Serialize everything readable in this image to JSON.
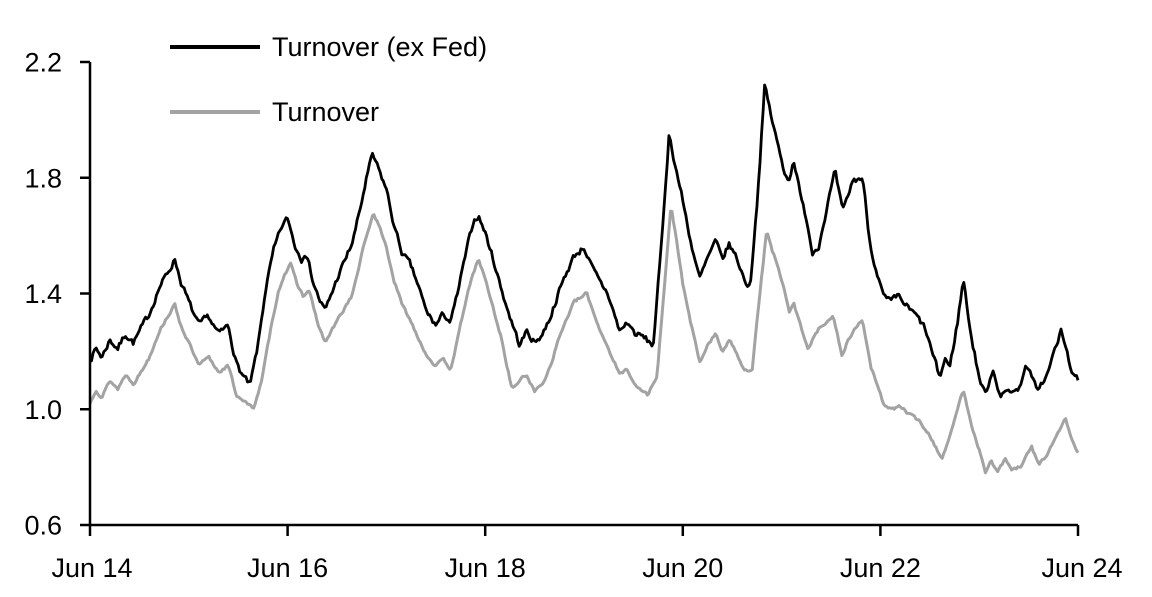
{
  "page": {
    "background": "#ffffff"
  },
  "legend": {
    "items": [
      {
        "label": "Turnover (ex Fed)",
        "color": "#000000"
      },
      {
        "label": "Turnover",
        "color": "#a3a3a3"
      }
    ]
  },
  "chart_data": {
    "type": "line",
    "title": "",
    "grid": false,
    "legend_position": "top-left-inside",
    "x_axis": {
      "label": "",
      "unit": "years since Jun 2014",
      "range": [
        0,
        10
      ],
      "tick_positions": [
        0,
        2,
        4,
        6,
        8,
        10
      ],
      "tick_labels": [
        "Jun 14",
        "Jun 16",
        "Jun 18",
        "Jun 20",
        "Jun 22",
        "Jun 24"
      ]
    },
    "y_axis": {
      "label": "",
      "range": [
        0.6,
        2.2
      ],
      "tick_values": [
        2.2,
        1.8,
        1.4,
        1.0,
        0.6
      ],
      "tick_labels": [
        "2.2",
        "1.8",
        "1.4",
        "1.0",
        "0.6"
      ]
    },
    "axis_color": "#000000",
    "series": [
      {
        "name": "Turnover (ex Fed)",
        "color": "#000000",
        "stroke_width": 2.8,
        "points": [
          [
            0,
            1.17
          ],
          [
            0.06,
            1.21
          ],
          [
            0.12,
            1.18
          ],
          [
            0.2,
            1.24
          ],
          [
            0.28,
            1.21
          ],
          [
            0.36,
            1.26
          ],
          [
            0.44,
            1.23
          ],
          [
            0.52,
            1.28
          ],
          [
            0.6,
            1.33
          ],
          [
            0.7,
            1.42
          ],
          [
            0.8,
            1.48
          ],
          [
            0.86,
            1.52
          ],
          [
            0.92,
            1.44
          ],
          [
            1,
            1.37
          ],
          [
            1.1,
            1.29
          ],
          [
            1.2,
            1.32
          ],
          [
            1.3,
            1.26
          ],
          [
            1.4,
            1.29
          ],
          [
            1.48,
            1.16
          ],
          [
            1.54,
            1.12
          ],
          [
            1.62,
            1.08
          ],
          [
            1.7,
            1.22
          ],
          [
            1.78,
            1.42
          ],
          [
            1.86,
            1.55
          ],
          [
            1.94,
            1.63
          ],
          [
            2,
            1.66
          ],
          [
            2.08,
            1.56
          ],
          [
            2.14,
            1.52
          ],
          [
            2.18,
            1.55
          ],
          [
            2.26,
            1.44
          ],
          [
            2.32,
            1.38
          ],
          [
            2.38,
            1.34
          ],
          [
            2.5,
            1.45
          ],
          [
            2.6,
            1.53
          ],
          [
            2.66,
            1.58
          ],
          [
            2.74,
            1.7
          ],
          [
            2.8,
            1.8
          ],
          [
            2.86,
            1.88
          ],
          [
            2.93,
            1.82
          ],
          [
            3,
            1.76
          ],
          [
            3.08,
            1.63
          ],
          [
            3.16,
            1.54
          ],
          [
            3.24,
            1.5
          ],
          [
            3.32,
            1.43
          ],
          [
            3.4,
            1.34
          ],
          [
            3.5,
            1.29
          ],
          [
            3.58,
            1.33
          ],
          [
            3.65,
            1.3
          ],
          [
            3.72,
            1.4
          ],
          [
            3.8,
            1.53
          ],
          [
            3.88,
            1.65
          ],
          [
            3.93,
            1.67
          ],
          [
            4,
            1.61
          ],
          [
            4.08,
            1.52
          ],
          [
            4.16,
            1.42
          ],
          [
            4.24,
            1.33
          ],
          [
            4.35,
            1.22
          ],
          [
            4.42,
            1.27
          ],
          [
            4.5,
            1.23
          ],
          [
            4.58,
            1.26
          ],
          [
            4.66,
            1.32
          ],
          [
            4.74,
            1.4
          ],
          [
            4.82,
            1.47
          ],
          [
            4.9,
            1.53
          ],
          [
            5,
            1.56
          ],
          [
            5.08,
            1.49
          ],
          [
            5.16,
            1.44
          ],
          [
            5.24,
            1.4
          ],
          [
            5.36,
            1.27
          ],
          [
            5.44,
            1.3
          ],
          [
            5.52,
            1.26
          ],
          [
            5.6,
            1.25
          ],
          [
            5.7,
            1.22
          ],
          [
            5.78,
            1.55
          ],
          [
            5.86,
            1.95
          ],
          [
            5.92,
            1.85
          ],
          [
            6,
            1.72
          ],
          [
            6.08,
            1.58
          ],
          [
            6.17,
            1.45
          ],
          [
            6.25,
            1.52
          ],
          [
            6.33,
            1.58
          ],
          [
            6.4,
            1.52
          ],
          [
            6.47,
            1.57
          ],
          [
            6.55,
            1.52
          ],
          [
            6.62,
            1.45
          ],
          [
            6.68,
            1.42
          ],
          [
            6.76,
            1.75
          ],
          [
            6.83,
            2.12
          ],
          [
            6.89,
            2.02
          ],
          [
            6.95,
            1.93
          ],
          [
            7.02,
            1.83
          ],
          [
            7.08,
            1.79
          ],
          [
            7.12,
            1.87
          ],
          [
            7.2,
            1.72
          ],
          [
            7.26,
            1.65
          ],
          [
            7.31,
            1.54
          ],
          [
            7.38,
            1.57
          ],
          [
            7.46,
            1.7
          ],
          [
            7.54,
            1.82
          ],
          [
            7.62,
            1.68
          ],
          [
            7.72,
            1.79
          ],
          [
            7.82,
            1.8
          ],
          [
            7.9,
            1.56
          ],
          [
            8.03,
            1.39
          ],
          [
            8.1,
            1.37
          ],
          [
            8.18,
            1.39
          ],
          [
            8.28,
            1.35
          ],
          [
            8.37,
            1.32
          ],
          [
            8.45,
            1.28
          ],
          [
            8.6,
            1.11
          ],
          [
            8.66,
            1.18
          ],
          [
            8.7,
            1.14
          ],
          [
            8.78,
            1.3
          ],
          [
            8.84,
            1.45
          ],
          [
            8.92,
            1.25
          ],
          [
            9,
            1.11
          ],
          [
            9.06,
            1.05
          ],
          [
            9.14,
            1.14
          ],
          [
            9.22,
            1.04
          ],
          [
            9.3,
            1.07
          ],
          [
            9.38,
            1.06
          ],
          [
            9.48,
            1.15
          ],
          [
            9.58,
            1.07
          ],
          [
            9.68,
            1.11
          ],
          [
            9.76,
            1.2
          ],
          [
            9.83,
            1.27
          ],
          [
            9.9,
            1.18
          ],
          [
            9.96,
            1.11
          ],
          [
            10,
            1.1
          ]
        ]
      },
      {
        "name": "Turnover",
        "color": "#a3a3a3",
        "stroke_width": 3,
        "points": [
          [
            0,
            1.02
          ],
          [
            0.06,
            1.07
          ],
          [
            0.12,
            1.04
          ],
          [
            0.2,
            1.1
          ],
          [
            0.28,
            1.07
          ],
          [
            0.36,
            1.12
          ],
          [
            0.44,
            1.09
          ],
          [
            0.52,
            1.13
          ],
          [
            0.6,
            1.18
          ],
          [
            0.7,
            1.27
          ],
          [
            0.8,
            1.33
          ],
          [
            0.86,
            1.36
          ],
          [
            0.92,
            1.29
          ],
          [
            1,
            1.23
          ],
          [
            1.1,
            1.15
          ],
          [
            1.2,
            1.18
          ],
          [
            1.3,
            1.13
          ],
          [
            1.4,
            1.15
          ],
          [
            1.48,
            1.05
          ],
          [
            1.56,
            1.03
          ],
          [
            1.65,
            1.0
          ],
          [
            1.74,
            1.1
          ],
          [
            1.82,
            1.26
          ],
          [
            1.9,
            1.4
          ],
          [
            1.97,
            1.47
          ],
          [
            2.03,
            1.5
          ],
          [
            2.1,
            1.43
          ],
          [
            2.16,
            1.39
          ],
          [
            2.22,
            1.41
          ],
          [
            2.3,
            1.3
          ],
          [
            2.38,
            1.23
          ],
          [
            2.46,
            1.28
          ],
          [
            2.56,
            1.34
          ],
          [
            2.66,
            1.4
          ],
          [
            2.74,
            1.52
          ],
          [
            2.8,
            1.6
          ],
          [
            2.87,
            1.68
          ],
          [
            2.94,
            1.62
          ],
          [
            3,
            1.56
          ],
          [
            3.08,
            1.44
          ],
          [
            3.16,
            1.36
          ],
          [
            3.24,
            1.31
          ],
          [
            3.32,
            1.25
          ],
          [
            3.4,
            1.19
          ],
          [
            3.5,
            1.15
          ],
          [
            3.58,
            1.17
          ],
          [
            3.65,
            1.14
          ],
          [
            3.72,
            1.24
          ],
          [
            3.8,
            1.37
          ],
          [
            3.88,
            1.47
          ],
          [
            3.93,
            1.52
          ],
          [
            4,
            1.45
          ],
          [
            4.08,
            1.35
          ],
          [
            4.16,
            1.25
          ],
          [
            4.27,
            1.07
          ],
          [
            4.35,
            1.1
          ],
          [
            4.42,
            1.12
          ],
          [
            4.5,
            1.06
          ],
          [
            4.58,
            1.09
          ],
          [
            4.66,
            1.15
          ],
          [
            4.74,
            1.24
          ],
          [
            4.82,
            1.31
          ],
          [
            4.9,
            1.37
          ],
          [
            5.03,
            1.4
          ],
          [
            5.1,
            1.33
          ],
          [
            5.18,
            1.26
          ],
          [
            5.26,
            1.2
          ],
          [
            5.36,
            1.12
          ],
          [
            5.44,
            1.14
          ],
          [
            5.52,
            1.08
          ],
          [
            5.65,
            1.05
          ],
          [
            5.74,
            1.12
          ],
          [
            5.82,
            1.45
          ],
          [
            5.88,
            1.7
          ],
          [
            5.94,
            1.58
          ],
          [
            6,
            1.43
          ],
          [
            6.08,
            1.3
          ],
          [
            6.17,
            1.16
          ],
          [
            6.25,
            1.22
          ],
          [
            6.33,
            1.26
          ],
          [
            6.4,
            1.2
          ],
          [
            6.47,
            1.24
          ],
          [
            6.55,
            1.19
          ],
          [
            6.62,
            1.14
          ],
          [
            6.7,
            1.13
          ],
          [
            6.78,
            1.4
          ],
          [
            6.85,
            1.62
          ],
          [
            6.9,
            1.55
          ],
          [
            6.96,
            1.5
          ],
          [
            7.02,
            1.42
          ],
          [
            7.08,
            1.33
          ],
          [
            7.12,
            1.37
          ],
          [
            7.2,
            1.28
          ],
          [
            7.27,
            1.21
          ],
          [
            7.34,
            1.26
          ],
          [
            7.4,
            1.29
          ],
          [
            7.52,
            1.32
          ],
          [
            7.61,
            1.19
          ],
          [
            7.72,
            1.27
          ],
          [
            7.82,
            1.31
          ],
          [
            7.9,
            1.15
          ],
          [
            8.03,
            1.02
          ],
          [
            8.12,
            1.0
          ],
          [
            8.2,
            1.01
          ],
          [
            8.3,
            0.98
          ],
          [
            8.4,
            0.96
          ],
          [
            8.53,
            0.89
          ],
          [
            8.62,
            0.83
          ],
          [
            8.7,
            0.9
          ],
          [
            8.78,
            1.0
          ],
          [
            8.84,
            1.07
          ],
          [
            8.92,
            0.95
          ],
          [
            9,
            0.86
          ],
          [
            9.06,
            0.78
          ],
          [
            9.12,
            0.83
          ],
          [
            9.18,
            0.78
          ],
          [
            9.26,
            0.83
          ],
          [
            9.33,
            0.79
          ],
          [
            9.42,
            0.8
          ],
          [
            9.53,
            0.87
          ],
          [
            9.6,
            0.81
          ],
          [
            9.68,
            0.84
          ],
          [
            9.76,
            0.89
          ],
          [
            9.87,
            0.97
          ],
          [
            9.94,
            0.89
          ],
          [
            10,
            0.85
          ]
        ]
      }
    ]
  }
}
